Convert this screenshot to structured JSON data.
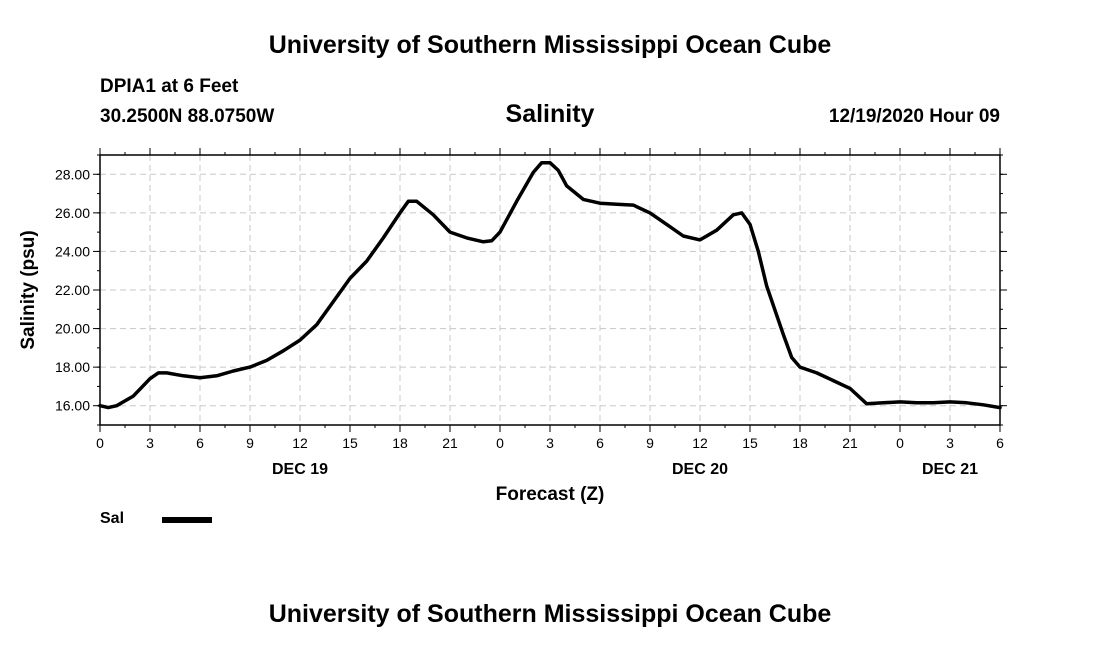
{
  "header": {
    "title": "University of Southern Mississippi Ocean Cube",
    "station": "DPIA1 at 6 Feet",
    "coords": "30.2500N 88.0750W",
    "subtitle": "Salinity",
    "timestamp": "12/19/2020 Hour 09"
  },
  "footer": {
    "title": "University of Southern Mississippi Ocean Cube"
  },
  "legend": {
    "label": "Sal"
  },
  "colors": {
    "line": "#000000",
    "grid": "#c8c8c8",
    "frame": "#000000"
  },
  "chart_data": {
    "type": "line",
    "title": "Salinity",
    "xlabel": "Forecast (Z)",
    "ylabel": "Salinity (psu)",
    "xlim": [
      0,
      54
    ],
    "ylim": [
      15,
      29
    ],
    "grid": true,
    "legend_position": "bottom-left",
    "xticks": [
      {
        "x": 0,
        "label": "0"
      },
      {
        "x": 3,
        "label": "3"
      },
      {
        "x": 6,
        "label": "6"
      },
      {
        "x": 9,
        "label": "9"
      },
      {
        "x": 12,
        "label": "12"
      },
      {
        "x": 15,
        "label": "15"
      },
      {
        "x": 18,
        "label": "18"
      },
      {
        "x": 21,
        "label": "21"
      },
      {
        "x": 24,
        "label": "0"
      },
      {
        "x": 27,
        "label": "3"
      },
      {
        "x": 30,
        "label": "6"
      },
      {
        "x": 33,
        "label": "9"
      },
      {
        "x": 36,
        "label": "12"
      },
      {
        "x": 39,
        "label": "15"
      },
      {
        "x": 42,
        "label": "18"
      },
      {
        "x": 45,
        "label": "21"
      },
      {
        "x": 48,
        "label": "0"
      },
      {
        "x": 51,
        "label": "3"
      },
      {
        "x": 54,
        "label": "6"
      }
    ],
    "day_labels": [
      {
        "x": 12,
        "label": "DEC 19"
      },
      {
        "x": 36,
        "label": "DEC 20"
      },
      {
        "x": 51,
        "label": "DEC 21"
      }
    ],
    "yticks": [
      {
        "y": 16,
        "label": "16.00"
      },
      {
        "y": 18,
        "label": "18.00"
      },
      {
        "y": 20,
        "label": "20.00"
      },
      {
        "y": 22,
        "label": "22.00"
      },
      {
        "y": 24,
        "label": "24.00"
      },
      {
        "y": 26,
        "label": "26.00"
      },
      {
        "y": 28,
        "label": "28.00"
      }
    ],
    "series": [
      {
        "name": "Sal",
        "x": [
          0,
          0.5,
          1,
          2,
          3,
          3.5,
          4,
          5,
          6,
          7,
          8,
          9,
          10,
          11,
          12,
          13,
          14,
          15,
          16,
          17,
          18,
          18.5,
          19,
          20,
          21,
          22,
          23,
          23.5,
          24,
          25,
          26,
          26.5,
          27,
          27.5,
          28,
          29,
          30,
          31,
          32,
          33,
          34,
          35,
          36,
          37,
          38,
          38.5,
          39,
          39.5,
          40,
          41,
          41.5,
          42,
          43,
          44,
          45,
          46,
          47,
          48,
          49,
          50,
          51,
          52,
          53,
          54
        ],
        "y": [
          16.0,
          15.9,
          16.0,
          16.5,
          17.4,
          17.7,
          17.7,
          17.55,
          17.45,
          17.55,
          17.8,
          18.0,
          18.35,
          18.85,
          19.4,
          20.2,
          21.4,
          22.6,
          23.5,
          24.7,
          26.0,
          26.6,
          26.6,
          25.9,
          25.0,
          24.7,
          24.5,
          24.55,
          25.0,
          26.6,
          28.1,
          28.6,
          28.6,
          28.2,
          27.4,
          26.7,
          26.5,
          26.45,
          26.4,
          26.0,
          25.4,
          24.8,
          24.6,
          25.1,
          25.9,
          26.0,
          25.4,
          24.0,
          22.2,
          19.7,
          18.5,
          18.0,
          17.7,
          17.3,
          16.9,
          16.1,
          16.15,
          16.2,
          16.15,
          16.15,
          16.2,
          16.15,
          16.05,
          15.9
        ]
      }
    ]
  }
}
